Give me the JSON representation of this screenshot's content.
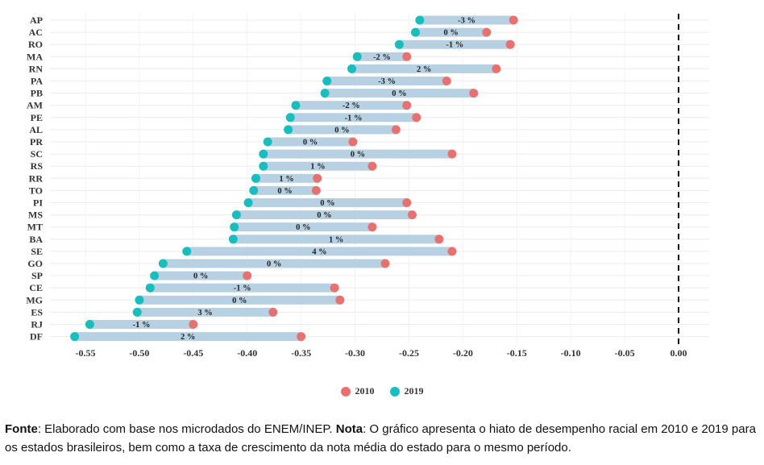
{
  "chart_data": {
    "type": "dumbbell",
    "categories": [
      "AP",
      "AC",
      "RO",
      "MA",
      "RN",
      "PA",
      "PB",
      "AM",
      "PE",
      "AL",
      "PR",
      "SC",
      "RS",
      "RR",
      "TO",
      "PI",
      "MS",
      "MT",
      "BA",
      "SE",
      "GO",
      "SP",
      "CE",
      "MG",
      "ES",
      "RJ",
      "DF"
    ],
    "series": [
      {
        "name": "2010",
        "color": "#e8716f",
        "values": [
          -0.153,
          -0.178,
          -0.156,
          -0.252,
          -0.169,
          -0.215,
          -0.19,
          -0.252,
          -0.243,
          -0.262,
          -0.302,
          -0.21,
          -0.284,
          -0.335,
          -0.336,
          -0.252,
          -0.247,
          -0.284,
          -0.222,
          -0.21,
          -0.272,
          -0.4,
          -0.319,
          -0.314,
          -0.376,
          -0.45,
          -0.35
        ]
      },
      {
        "name": "2019",
        "color": "#18bdbd",
        "values": [
          -0.24,
          -0.244,
          -0.259,
          -0.298,
          -0.303,
          -0.326,
          -0.328,
          -0.355,
          -0.36,
          -0.362,
          -0.381,
          -0.385,
          -0.385,
          -0.392,
          -0.394,
          -0.399,
          -0.41,
          -0.412,
          -0.413,
          -0.456,
          -0.478,
          -0.486,
          -0.49,
          -0.5,
          -0.502,
          -0.546,
          -0.56
        ]
      }
    ],
    "growth_labels": [
      "-3 %",
      "0 %",
      "-1 %",
      "-2 %",
      "2 %",
      "-3 %",
      "0 %",
      "-2 %",
      "-1 %",
      "0 %",
      "0 %",
      "0 %",
      "1 %",
      "1 %",
      "0 %",
      "0 %",
      "0 %",
      "0 %",
      "1 %",
      "4 %",
      "0 %",
      "0 %",
      "-1 %",
      "0 %",
      "3 %",
      "-1 %",
      "2 %"
    ],
    "xlim": [
      -0.565,
      0.0
    ],
    "xticks": [
      "-0.55",
      "-0.50",
      "-0.45",
      "-0.40",
      "-0.35",
      "-0.30",
      "-0.25",
      "-0.20",
      "-0.15",
      "-0.10",
      "-0.05",
      "0.00"
    ],
    "xtick_values": [
      -0.55,
      -0.5,
      -0.45,
      -0.4,
      -0.35,
      -0.3,
      -0.25,
      -0.2,
      -0.15,
      -0.1,
      -0.05,
      0.0
    ],
    "reference_line": 0.0,
    "bar_color": "#b7d1e3",
    "grid": true,
    "legend_position": "bottom"
  },
  "note": {
    "source_label": "Fonte",
    "source_text": ": Elaborado com base nos microdados do ENEM/INEP. ",
    "note_label": "Nota",
    "note_text": ": O gráfico apresenta o hiato de desempenho racial em 2010 e 2019 para os estados brasileiros, bem como a taxa de crescimento da nota média do estado para o mesmo período."
  }
}
